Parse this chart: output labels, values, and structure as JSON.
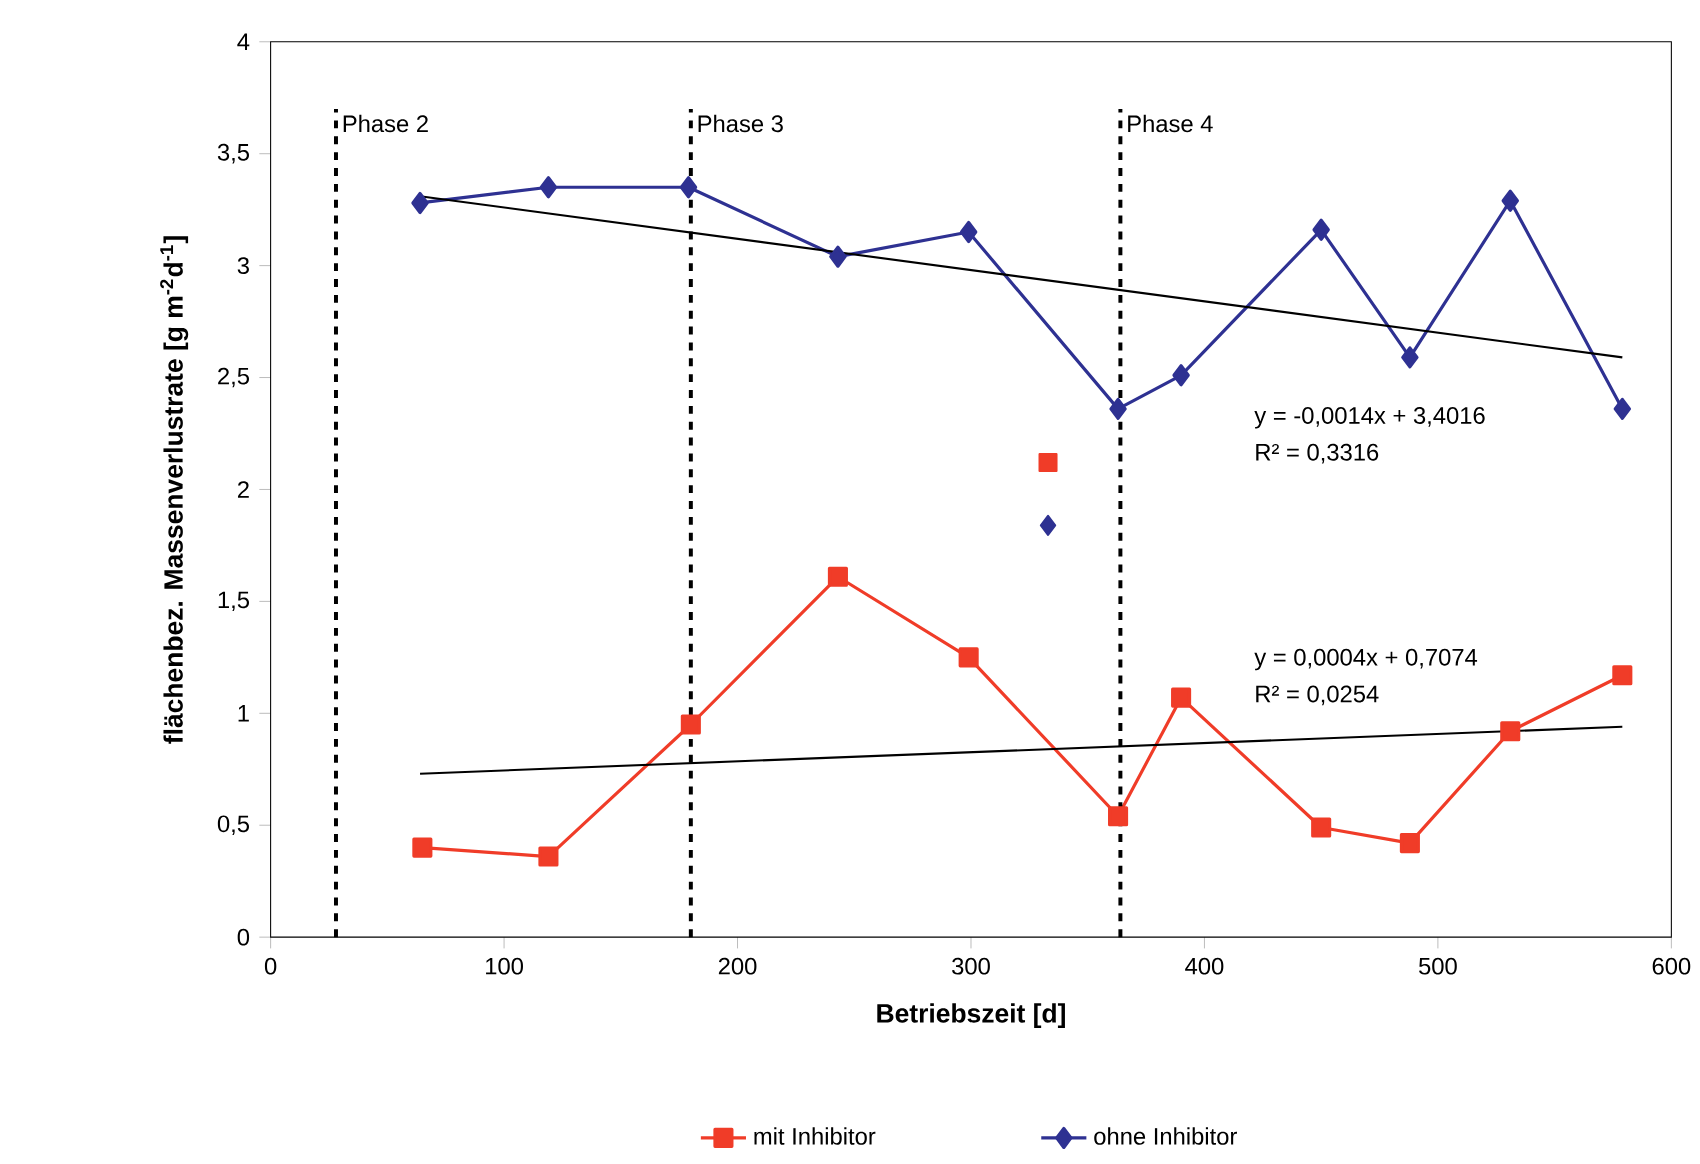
{
  "chart_data": {
    "type": "line",
    "xlabel": "Betriebszeit [d]",
    "ylabel": "flächenbez. Massenverlustrate [g m$^{-2}$d$^{-1}$]",
    "xlim": [
      0,
      600
    ],
    "xticks": [
      0,
      100,
      200,
      300,
      400,
      500,
      600
    ],
    "ylim": [
      0,
      4
    ],
    "yticks": [
      0,
      {
        "value": 0.5,
        "label": "0,5"
      },
      1,
      {
        "value": 1.5,
        "label": "1,5"
      },
      2,
      {
        "value": 2.5,
        "label": "2,5"
      },
      3,
      {
        "value": 3.5,
        "label": "3,5"
      },
      4
    ],
    "grid": false,
    "legend": "bottom",
    "series": [
      {
        "name": "mit Inhibitor",
        "color": "#f03c28",
        "marker": "square",
        "x": [
          65,
          119,
          180,
          243,
          299,
          363,
          390,
          450,
          488,
          531,
          579
        ],
        "values": [
          0.4,
          0.36,
          0.95,
          1.61,
          1.25,
          0.54,
          1.07,
          0.49,
          0.42,
          0.92,
          1.17
        ]
      },
      {
        "name": "ohne Inhibitor",
        "color": "#2e3192",
        "marker": "diamond",
        "x": [
          64,
          119,
          179,
          243,
          299,
          363,
          390,
          450,
          488,
          531,
          579
        ],
        "values": [
          3.28,
          3.35,
          3.35,
          3.04,
          3.15,
          2.36,
          2.51,
          3.16,
          2.59,
          3.29,
          2.36
        ]
      },
      {
        "type": "scatter",
        "color": "#f03c28",
        "marker": "square",
        "x": [
          333
        ],
        "values": [
          2.12
        ]
      },
      {
        "type": "scatter",
        "color": "#2e3192",
        "marker": "diamond",
        "x": [
          333
        ],
        "values": [
          1.84
        ]
      },
      {
        "type": "line",
        "color": "#000000",
        "marker": "none",
        "line_style": "solid",
        "x": [
          64,
          579
        ],
        "values": [
          3.31,
          2.59
        ]
      },
      {
        "type": "line",
        "color": "#000000",
        "marker": "none",
        "line_style": "solid",
        "x": [
          64,
          579
        ],
        "values": [
          0.73,
          0.94
        ]
      }
    ],
    "ref_lines": [
      {
        "axis": "x",
        "value": 28,
        "label": "Phase 2",
        "line_style": "dashed",
        "color": "#000000"
      },
      {
        "axis": "x",
        "value": 180,
        "label": "Phase 3",
        "line_style": "dashed",
        "color": "#000000"
      },
      {
        "axis": "x",
        "value": 364,
        "label": "Phase 4",
        "line_style": "dashed",
        "color": "#000000"
      }
    ],
    "annotations": [
      "y = -0,0014x + 3,4016",
      "R² = 0,3316",
      "y = 0,0004x + 0,7074",
      "R² = 0,0254"
    ]
  }
}
